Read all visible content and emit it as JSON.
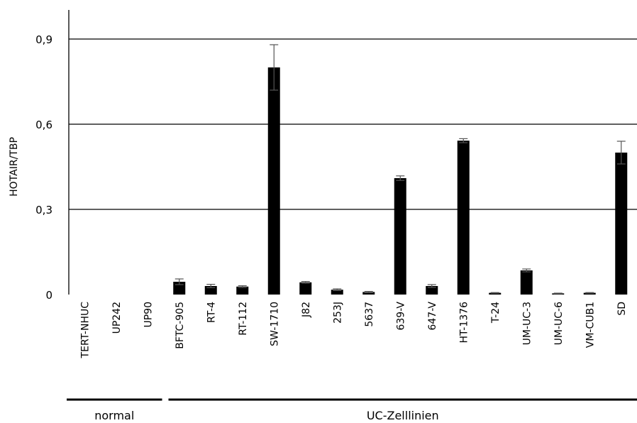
{
  "chart_data": {
    "type": "bar",
    "title": "",
    "xlabel": "",
    "ylabel": "HOTAIR/TBP",
    "ylim": [
      0,
      0.9
    ],
    "yticks": [
      0,
      0.3,
      0.6,
      0.9
    ],
    "ytick_labels": [
      "0",
      "0,3",
      "0,6",
      "0,9"
    ],
    "grid": true,
    "bar_color": "#000000",
    "categories": [
      "TERT-NHUC",
      "UP242",
      "UP90",
      "BFTC-905",
      "RT-4",
      "RT-112",
      "SW-1710",
      "J82",
      "253J",
      "5637",
      "639-V",
      "647-V",
      "HT-1376",
      "T-24",
      "UM-UC-3",
      "UM-UC-6",
      "VM-CUB1",
      "SD"
    ],
    "values": [
      0,
      0,
      0,
      0.045,
      0.03,
      0.028,
      0.8,
      0.043,
      0.017,
      0.009,
      0.41,
      0.03,
      0.542,
      0.006,
      0.085,
      0.004,
      0.006,
      0.5
    ],
    "errors": [
      0,
      0,
      0,
      0.01,
      0.006,
      0.003,
      0.08,
      0.003,
      0.003,
      0.002,
      0.008,
      0.005,
      0.007,
      0.001,
      0.005,
      0.001,
      0.001,
      0.04
    ],
    "groups": [
      {
        "label": "normal",
        "start": 0,
        "end": 2
      },
      {
        "label": "UC-Zelllinien",
        "start": 3,
        "end": 17
      }
    ]
  }
}
